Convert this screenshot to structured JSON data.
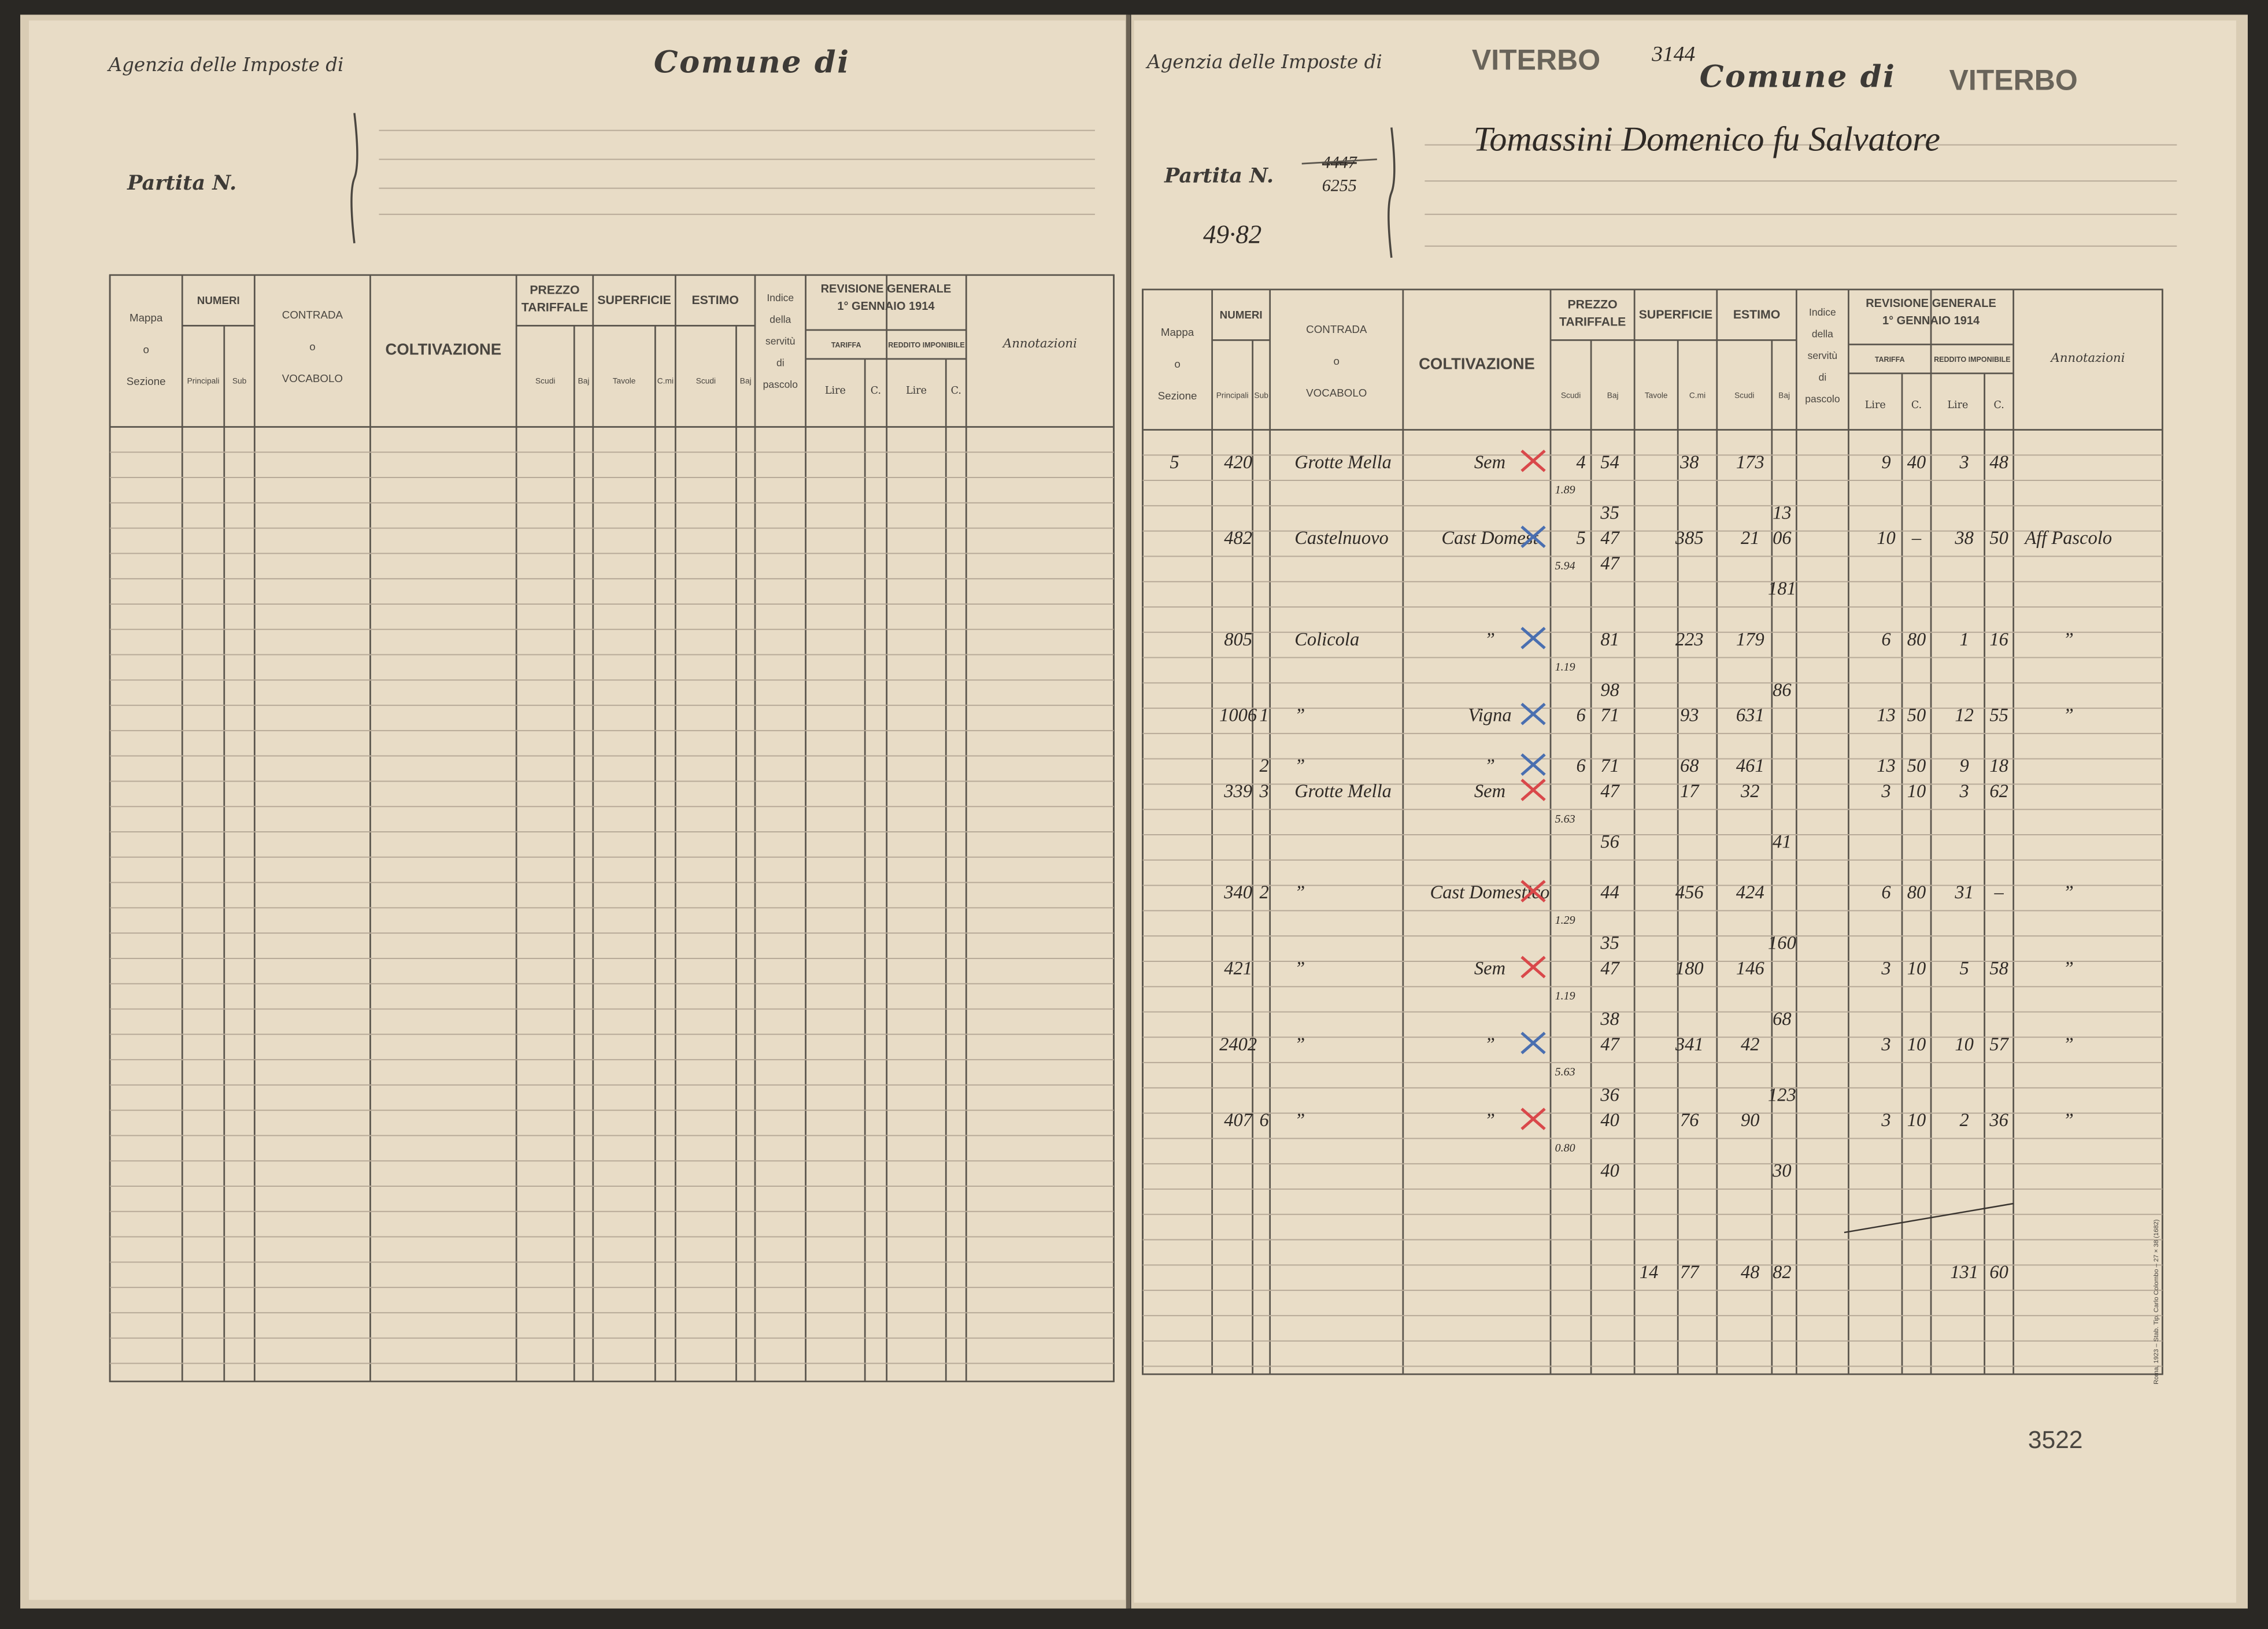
{
  "header": {
    "agency": "Agenzia delle Imposte di",
    "comune": "Comune di",
    "partita": "Partita N."
  },
  "columns": {
    "mappa": [
      "Mappa",
      "o",
      "Sezione"
    ],
    "numeri": "NUMERI",
    "principali": "Principali",
    "sub": "Sub",
    "contrada": [
      "CONTRADA",
      "o",
      "VOCABOLO"
    ],
    "coltivazione": "COLTIVAZIONE",
    "prezzo": [
      "PREZZO",
      "TARIFFALE"
    ],
    "scudi": "Scudi",
    "baj": "Baj",
    "superficie": "SUPERFICIE",
    "tavole": "Tavole",
    "centiare": "C.mi",
    "estimo": "ESTIMO",
    "indice": [
      "Indice",
      "della",
      "servitù",
      "di",
      "pascolo"
    ],
    "revisione": [
      "REVISIONE GENERALE",
      "1° GENNAIO 1914"
    ],
    "tariffa": "TARIFFA",
    "reddito": "REDDITO IMPONIBILE",
    "lire": "Lire",
    "centesimi": "C.",
    "annotazioni": "Annotazioni"
  },
  "right": {
    "agency_stamp": "VITERBO",
    "ref": "3144",
    "comune_stamp": "VITERBO",
    "owner": "Tomassini Domenico fu Salvatore",
    "partita_old": "4447",
    "partita": "6255",
    "note": "49·82",
    "page_number": "3522",
    "printer": "Roma, 1923 – Stab. Tip. Carlo Colombo – 27 × 38 (1682)"
  },
  "rows": [
    {
      "mappa": "5",
      "num": "420",
      "contrada": "Grotte Mella",
      "colt": "Sem",
      "ps": "4",
      "pb": "54",
      "sc": "38",
      "es": "173",
      "tl": "9",
      "tc": "40",
      "rl": "3",
      "rc": "48"
    },
    {
      "cn": "1.89"
    },
    {
      "pb": "35",
      "eb": "13"
    },
    {
      "num": "482",
      "contrada": "Castelnuovo",
      "colt": "Cast Domest",
      "ps": "5",
      "pb": "47",
      "sc": "385",
      "es": "21",
      "eb": "06",
      "tl": "10",
      "tc": "–",
      "rl": "38",
      "rc": "50",
      "ann": "Aff Pascolo"
    },
    {
      "cn": "5.94",
      "pb": "47"
    },
    {
      "eb": "181"
    },
    {
      "num": "805",
      "contrada": "Colicola",
      "colt": "”",
      "pb": "81",
      "sc": "223",
      "es": "179",
      "tl": "6",
      "tc": "80",
      "rl": "1",
      "rc": "16",
      "ann": "”"
    },
    {
      "cn": "1.19"
    },
    {
      "pb": "98",
      "eb": "86"
    },
    {
      "num": "1006",
      "sub": "1",
      "contrada": "”",
      "colt": "Vigna",
      "ps": "6",
      "pb": "71",
      "sc": "93",
      "es": "631",
      "tl": "13",
      "tc": "50",
      "rl": "12",
      "rc": "55",
      "ann": "”"
    },
    {
      "sub": "2",
      "contrada": "”",
      "colt": "”",
      "ps": "6",
      "pb": "71",
      "sc": "68",
      "es": "461",
      "tl": "13",
      "tc": "50",
      "rl": "9",
      "rc": "18"
    },
    {
      "num": "339",
      "sub": "3",
      "contrada": "Grotte Mella",
      "colt": "Sem",
      "pb": "47",
      "sc": "17",
      "es": "32",
      "tl": "3",
      "tc": "10",
      "rl": "3",
      "rc": "62"
    },
    {
      "cn": "5.63"
    },
    {
      "pb": "56",
      "eb": "41"
    },
    {
      "num": "340",
      "sub": "2",
      "contrada": "”",
      "colt": "Cast Domestico",
      "pb": "44",
      "sc": "456",
      "es": "424",
      "tl": "6",
      "tc": "80",
      "rl": "31",
      "rc": "–",
      "ann": "”"
    },
    {
      "cn": "1.29"
    },
    {
      "pb": "35",
      "eb": "160"
    },
    {
      "num": "421",
      "contrada": "”",
      "colt": "Sem",
      "pb": "47",
      "sc": "180",
      "es": "146",
      "tl": "3",
      "tc": "10",
      "rl": "5",
      "rc": "58",
      "ann": "”"
    },
    {
      "cn": "1.19"
    },
    {
      "pb": "38",
      "eb": "68"
    },
    {
      "num": "2402",
      "contrada": "”",
      "colt": "”",
      "pb": "47",
      "sc": "341",
      "es": "42",
      "tl": "3",
      "tc": "10",
      "rl": "10",
      "rc": "57",
      "ann": "”"
    },
    {
      "cn": "5.63"
    },
    {
      "pb": "36",
      "eb": "123"
    },
    {
      "num": "407",
      "sub": "6",
      "contrada": "”",
      "colt": "”",
      "pb": "40",
      "sc": "76",
      "es": "90",
      "tl": "3",
      "tc": "10",
      "rl": "2",
      "rc": "36",
      "ann": "”"
    },
    {
      "cn": "0.80"
    },
    {
      "pb": "40",
      "eb": "30"
    },
    {
      "st": "14",
      "sc": "77",
      "es": "48",
      "eb": "82",
      "rl": "131",
      "rc": "60"
    }
  ]
}
